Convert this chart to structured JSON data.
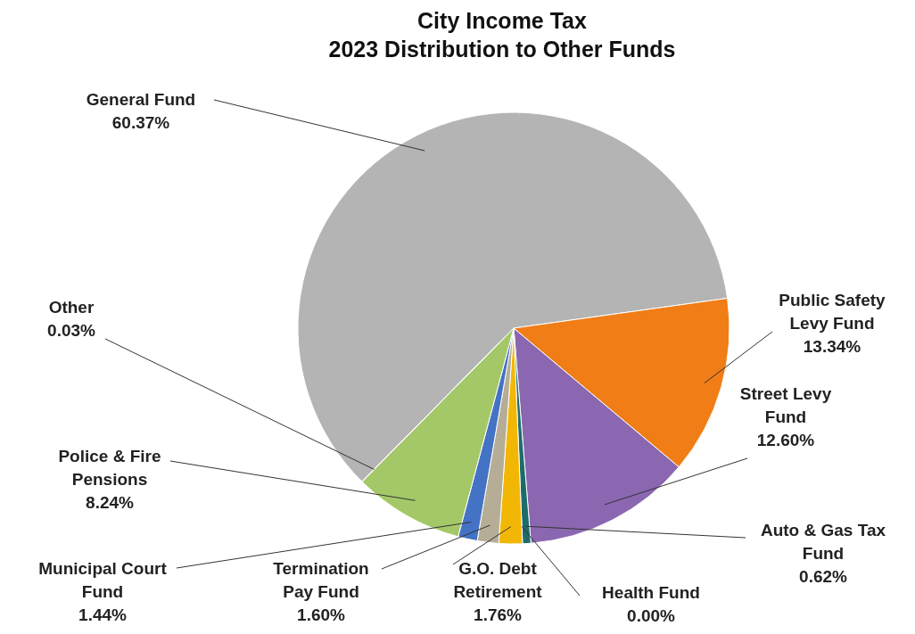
{
  "chart_data": {
    "type": "pie",
    "title": "City Income Tax 2023 Distribution to Other Funds",
    "categories": [
      "General Fund",
      "Public Safety Levy Fund",
      "Street Levy Fund",
      "Auto & Gas Tax Fund",
      "Health Fund",
      "G.O. Debt Retirement",
      "Termination Pay Fund",
      "Municipal Court Fund",
      "Police & Fire Pensions",
      "Other"
    ],
    "values": [
      60.37,
      13.34,
      12.6,
      0.62,
      0.0,
      1.76,
      1.6,
      1.44,
      8.24,
      0.03
    ],
    "colors": [
      "#b4b4b4",
      "#f07d16",
      "#8a67b0",
      "#1e6b6b",
      "#1a3a5c",
      "#f2b705",
      "#b5ad95",
      "#4472c4",
      "#a4c868",
      "#6b8e23"
    ],
    "value_labels": [
      "60.37%",
      "13.34%",
      "12.60%",
      "0.62%",
      "0.00%",
      "1.76%",
      "1.60%",
      "1.44%",
      "8.24%",
      "0.03%"
    ]
  }
}
